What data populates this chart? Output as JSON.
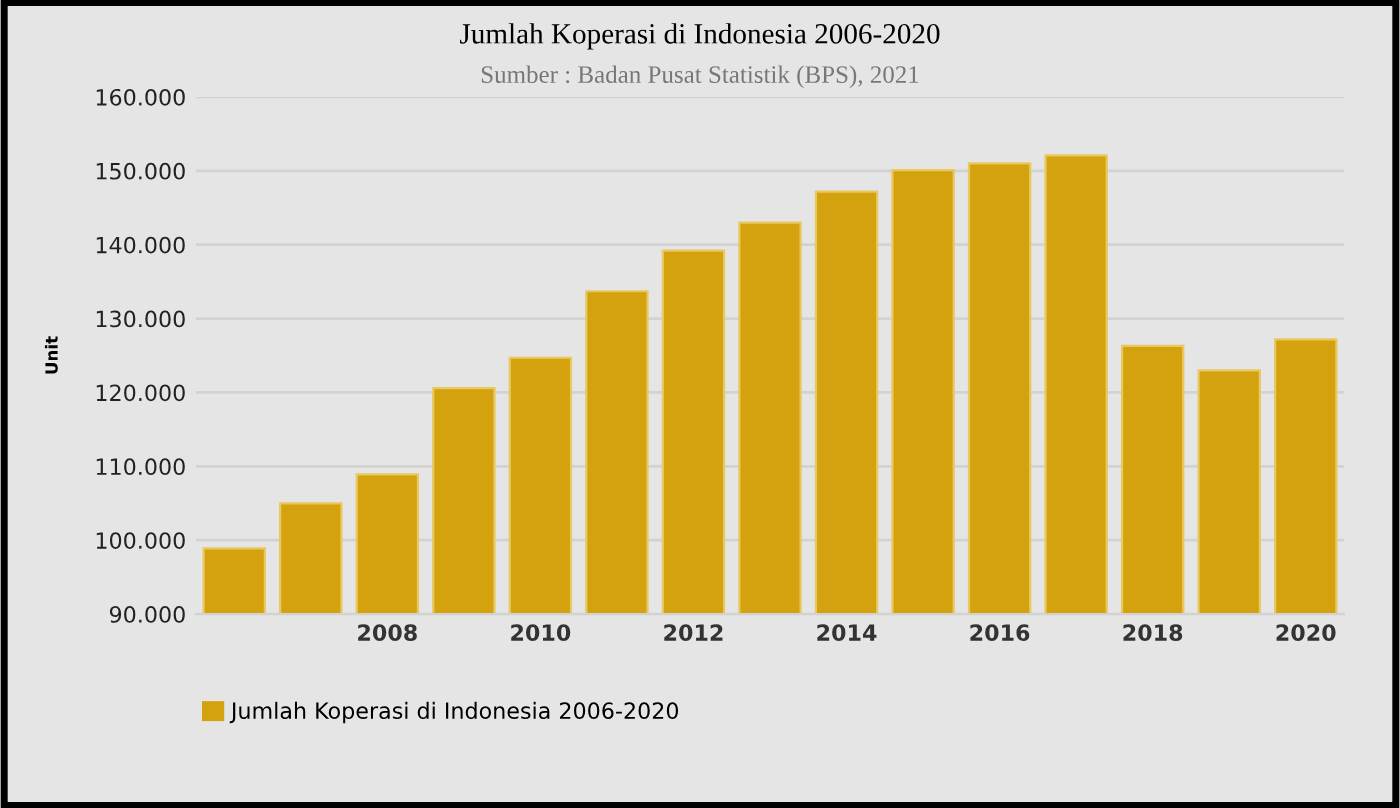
{
  "chart_data": {
    "type": "bar",
    "title": "Jumlah Koperasi di Indonesia 2006-2020",
    "subtitle": "Sumber : Badan Pusat Statistik (BPS), 2021",
    "ylabel": "Unit",
    "x": [
      2006,
      2007,
      2008,
      2009,
      2010,
      2011,
      2012,
      2013,
      2014,
      2015,
      2016,
      2017,
      2018,
      2019,
      2020
    ],
    "series": [
      {
        "name": "Jumlah Koperasi di Indonesia 2006-2020",
        "color": "#d4a20e",
        "values": [
          98900,
          105000,
          108900,
          120600,
          124700,
          133700,
          139200,
          143000,
          147200,
          150100,
          151000,
          152100,
          126300,
          123000,
          127200
        ]
      }
    ],
    "xlim": [
      2005.5,
      2020.5
    ],
    "xticks": [
      2008,
      2010,
      2012,
      2014,
      2016,
      2018,
      2020
    ],
    "ylim": [
      90000,
      160000
    ],
    "yticks": [
      {
        "value": 90000,
        "label": "90.000"
      },
      {
        "value": 100000,
        "label": "100.000"
      },
      {
        "value": 110000,
        "label": "110.000"
      },
      {
        "value": 120000,
        "label": "120.000"
      },
      {
        "value": 130000,
        "label": "130.000"
      },
      {
        "value": 140000,
        "label": "140.000"
      },
      {
        "value": 150000,
        "label": "150.000"
      },
      {
        "value": 160000,
        "label": "160.000"
      }
    ],
    "grid": "y",
    "legend": "bottom left"
  }
}
